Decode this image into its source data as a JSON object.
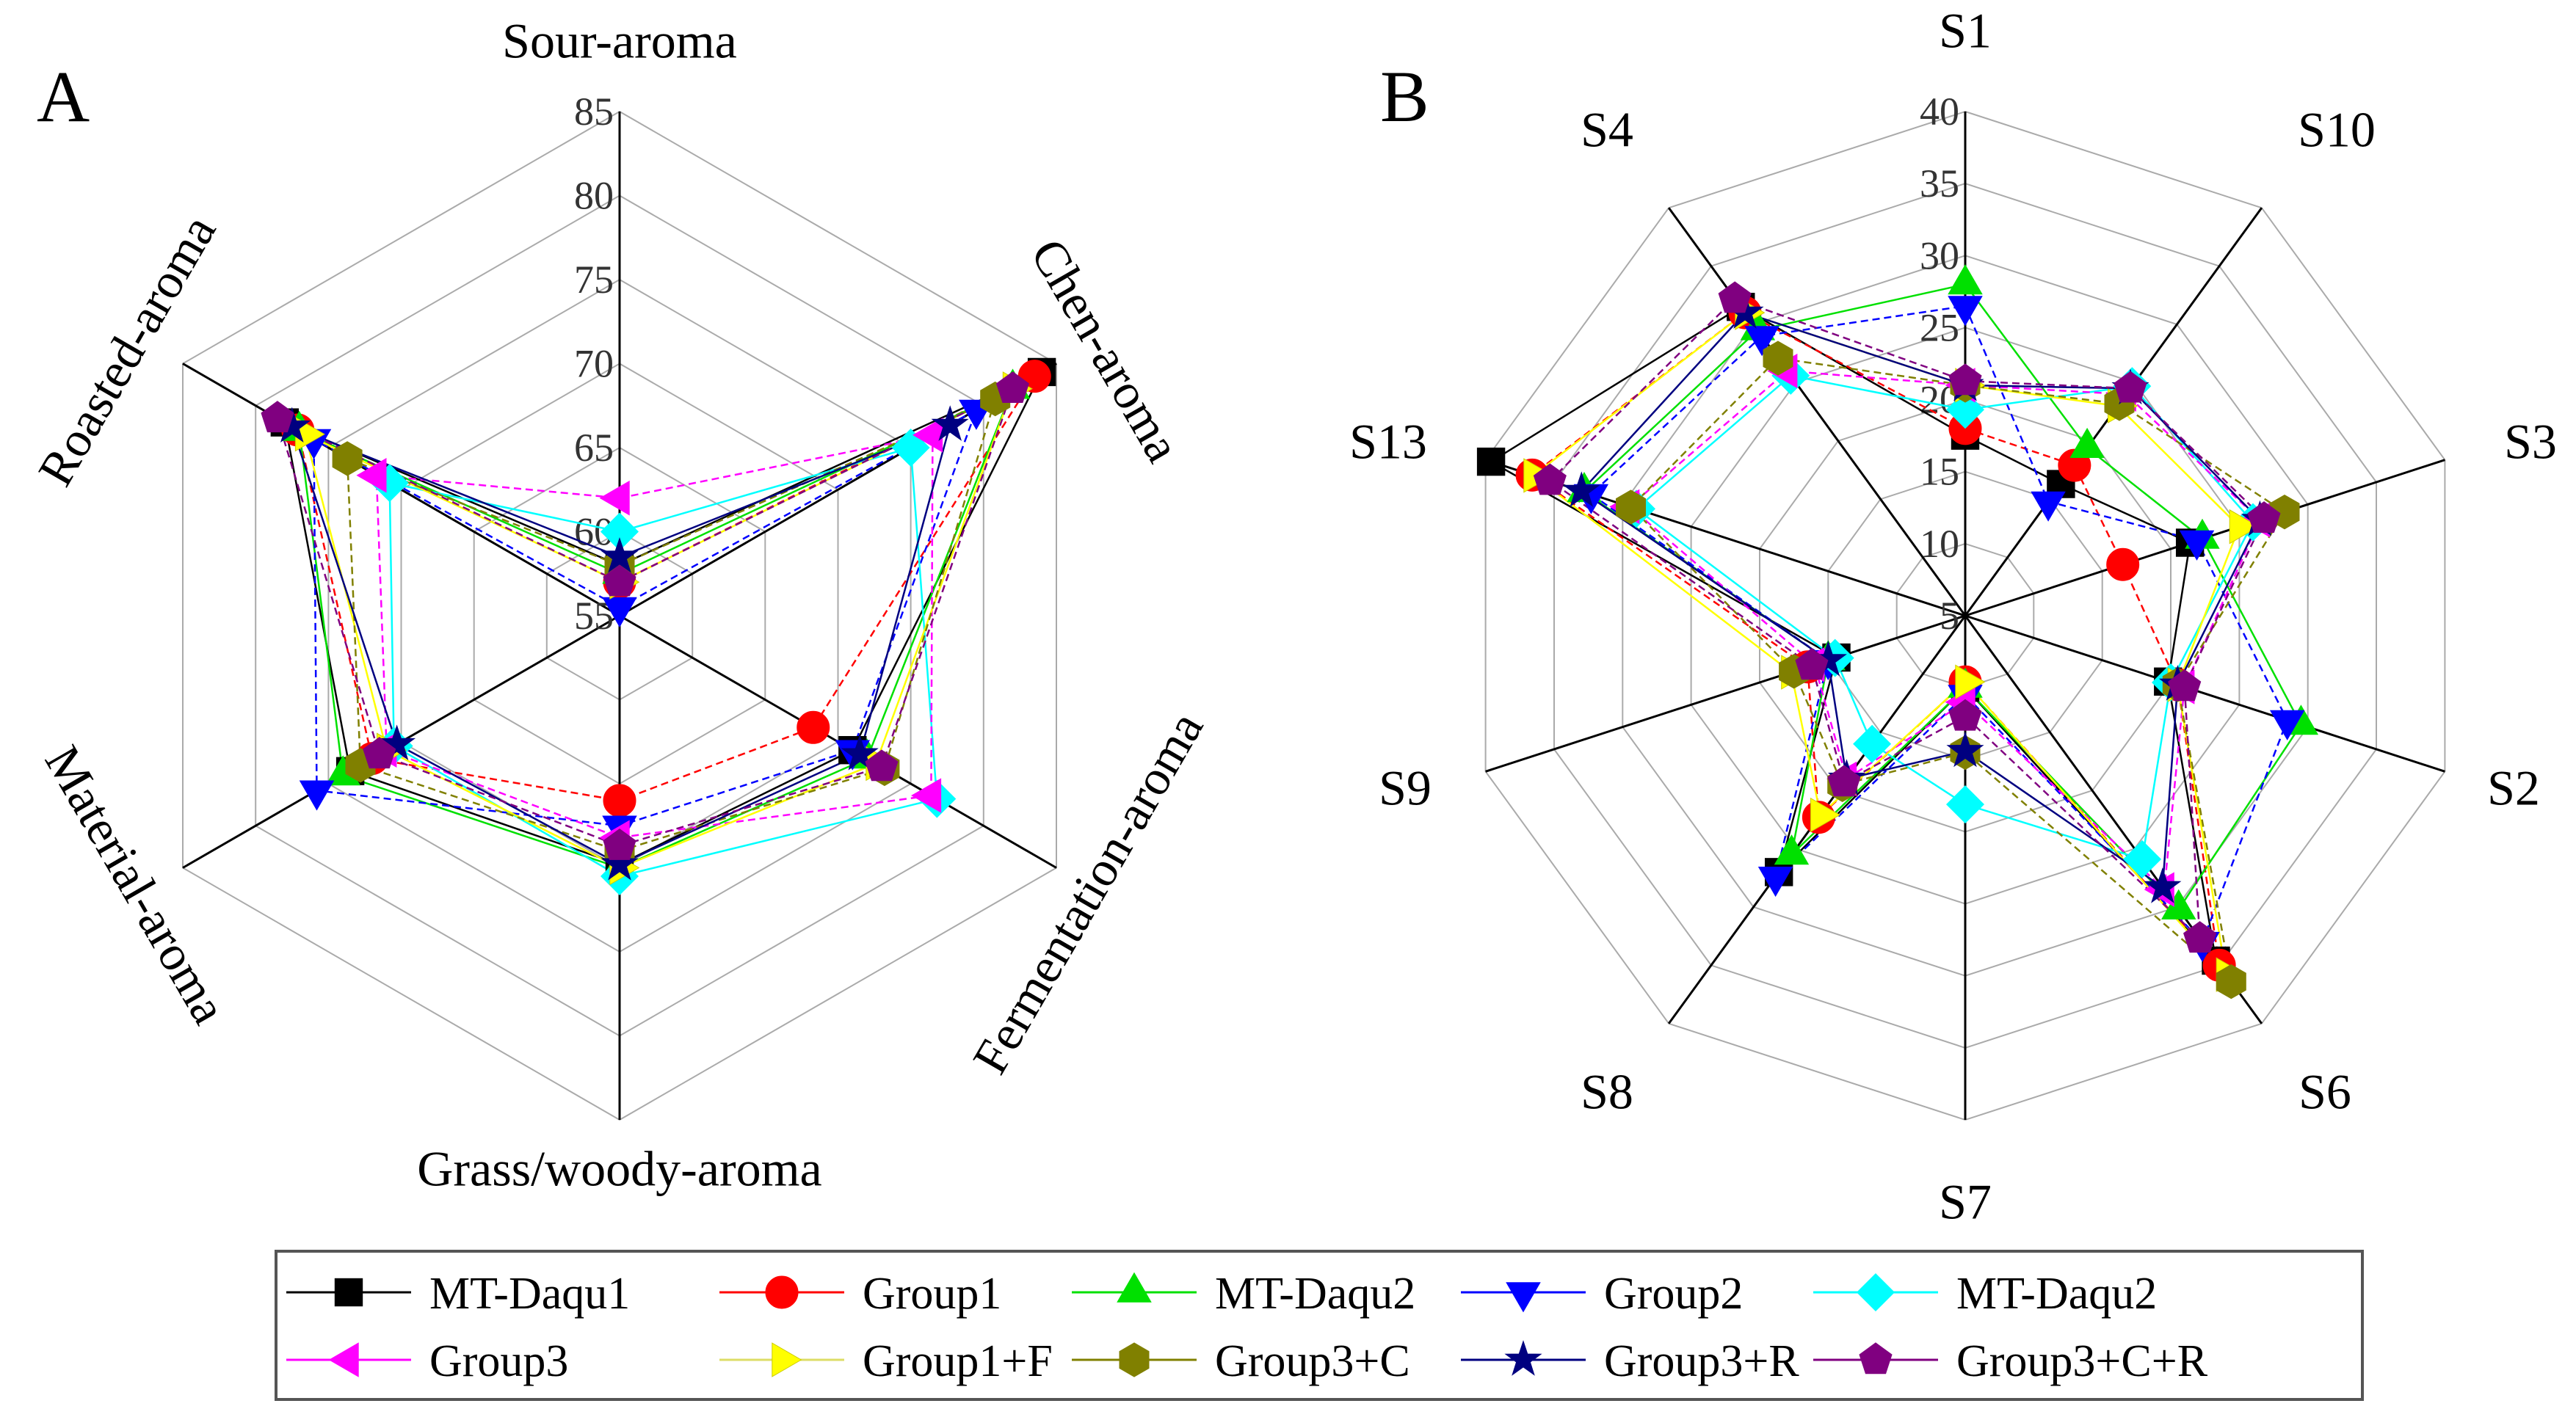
{
  "chart_data": [
    {
      "type": "radar",
      "panel": "A",
      "axes": [
        "Sour-aroma",
        "Chen-aroma",
        "Fermentation-aroma",
        "Grass/woody-aroma",
        "Material-aroma",
        "Roasted-aroma"
      ],
      "rlim": [
        55,
        85
      ],
      "ticks": [
        55,
        60,
        65,
        70,
        75,
        80,
        85
      ],
      "series": [
        {
          "name": "MT-Daqu1",
          "values": [
            58,
            84,
            71,
            69.8,
            73.5,
            78
          ]
        },
        {
          "name": "Group1",
          "values": [
            57,
            83.5,
            68.3,
            66,
            72,
            77.1
          ]
        },
        {
          "name": "MT-Daqu2",
          "values": [
            57.5,
            82,
            72,
            70,
            74,
            77
          ]
        },
        {
          "name": "Group2",
          "values": [
            55.5,
            79.5,
            71,
            67.5,
            75.8,
            76
          ]
        },
        {
          "name": "MT-Daqu2",
          "values": [
            60,
            75,
            76.8,
            70.5,
            70.5,
            70.8
          ]
        },
        {
          "name": "Group3",
          "values": [
            62,
            76.5,
            76.4,
            68.2,
            71,
            71.7
          ]
        },
        {
          "name": "Group1+F",
          "values": [
            57,
            82,
            72.6,
            70,
            71,
            76.6
          ]
        },
        {
          "name": "Group3+C",
          "values": [
            58,
            80.8,
            73.2,
            69,
            72.8,
            73.7
          ]
        },
        {
          "name": "Group3+R",
          "values": [
            58.5,
            77.7,
            71.5,
            69.8,
            70.3,
            77.5
          ]
        },
        {
          "name": "Group3+C+R",
          "values": [
            57,
            82,
            73,
            68.7,
            71.5,
            78.5
          ]
        }
      ]
    },
    {
      "type": "radar",
      "panel": "B",
      "axes": [
        "S1",
        "S10",
        "S3",
        "S2",
        "S6",
        "S7",
        "S8",
        "S9",
        "S13",
        "S4"
      ],
      "rlim": [
        5,
        40
      ],
      "ticks": [
        5,
        10,
        15,
        20,
        25,
        30,
        35,
        40
      ],
      "series": [
        {
          "name": "MT-Daqu1",
          "values": [
            17.5,
            16.3,
            21.4,
            19.8,
            34.6,
            10,
            27,
            14.4,
            39.6,
            31.5
          ]
        },
        {
          "name": "Group1",
          "values": [
            18,
            17.9,
            16.5,
            20.5,
            35,
            9.6,
            22.3,
            16.5,
            36.6,
            31
          ]
        },
        {
          "name": "MT-Daqu2",
          "values": [
            28,
            19.4,
            22.3,
            29.5,
            30.2,
            10,
            25.5,
            15,
            32.8,
            29.5
          ]
        },
        {
          "name": "Group2",
          "values": [
            26.5,
            14.8,
            21.9,
            28.5,
            33,
            10.5,
            27.4,
            15,
            32.3,
            29
          ]
        },
        {
          "name": "MT-Daqu2",
          "values": [
            19.3,
            24.7,
            26,
            20,
            25.9,
            18.1,
            16,
            14.5,
            29,
            25.6
          ]
        },
        {
          "name": "Group3",
          "values": [
            21,
            24,
            26.5,
            21,
            28.5,
            11,
            19,
            16,
            29.5,
            26
          ]
        },
        {
          "name": "Group1+F",
          "values": [
            21,
            23,
            25,
            20.5,
            35.8,
            9.6,
            22.1,
            17.7,
            36.5,
            31
          ]
        },
        {
          "name": "Group3+C",
          "values": [
            21,
            23.2,
            28.3,
            20.5,
            36.4,
            14.5,
            19.5,
            17.5,
            29.4,
            27.1
          ]
        },
        {
          "name": "Group3+R",
          "values": [
            21,
            24.5,
            26.5,
            20.5,
            28.3,
            14.4,
            19,
            15,
            33,
            31
          ]
        },
        {
          "name": "Group3+C+R",
          "values": [
            21.3,
            24.5,
            26.8,
            21,
            32.7,
            12,
            19.3,
            16.2,
            35.3,
            32.2
          ]
        }
      ]
    }
  ],
  "legend": {
    "placement": "bottom",
    "items": [
      {
        "label": "MT-Daqu1",
        "color": "#000000",
        "marker": "square"
      },
      {
        "label": "Group1",
        "color": "#ff0000",
        "marker": "circle"
      },
      {
        "label": "MT-Daqu2",
        "color": "#00e000",
        "marker": "triangle-up"
      },
      {
        "label": "Group2",
        "color": "#0000ff",
        "marker": "triangle-down"
      },
      {
        "label": "MT-Daqu2",
        "color": "#00ffff",
        "marker": "diamond"
      },
      {
        "label": "Group3",
        "color": "#ff00ff",
        "marker": "triangle-left"
      },
      {
        "label": "Group1+F",
        "color": "#ffff00",
        "marker": "triangle-right"
      },
      {
        "label": "Group3+C",
        "color": "#808000",
        "marker": "hexagon"
      },
      {
        "label": "Group3+R",
        "color": "#000080",
        "marker": "star"
      },
      {
        "label": "Group3+C+R",
        "color": "#800080",
        "marker": "pentagon"
      }
    ]
  }
}
